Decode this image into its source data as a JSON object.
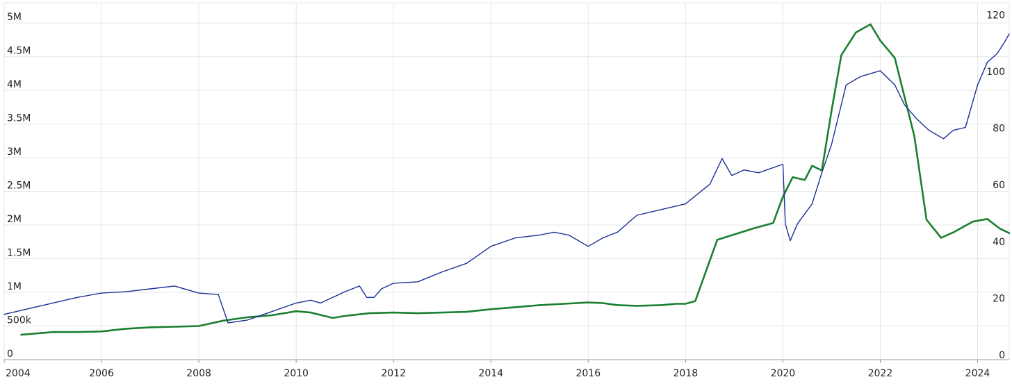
{
  "chart_data": {
    "type": "line",
    "title": "",
    "xlabel": "",
    "ylabel_left": "",
    "ylabel_right": "",
    "grid": true,
    "legend": "none",
    "x_range": [
      2004,
      2024.65
    ],
    "ylim_left": [
      0,
      5300000
    ],
    "ylim_right": [
      0,
      126
    ],
    "x_ticks": [
      {
        "value": 2004,
        "label": "2004"
      },
      {
        "value": 2006,
        "label": "2006"
      },
      {
        "value": 2008,
        "label": "2008"
      },
      {
        "value": 2010,
        "label": "2010"
      },
      {
        "value": 2012,
        "label": "2012"
      },
      {
        "value": 2014,
        "label": "2014"
      },
      {
        "value": 2016,
        "label": "2016"
      },
      {
        "value": 2018,
        "label": "2018"
      },
      {
        "value": 2020,
        "label": "2020"
      },
      {
        "value": 2022,
        "label": "2022"
      },
      {
        "value": 2024,
        "label": "2024"
      }
    ],
    "y_left_ticks": [
      {
        "value": 0,
        "label": "0"
      },
      {
        "value": 500000,
        "label": "500k"
      },
      {
        "value": 1000000,
        "label": "1M"
      },
      {
        "value": 1500000,
        "label": "1.5M"
      },
      {
        "value": 2000000,
        "label": "2M"
      },
      {
        "value": 2500000,
        "label": "2.5M"
      },
      {
        "value": 3000000,
        "label": "3M"
      },
      {
        "value": 3500000,
        "label": "3.5M"
      },
      {
        "value": 4000000,
        "label": "4M"
      },
      {
        "value": 4500000,
        "label": "4.5M"
      },
      {
        "value": 5000000,
        "label": "5M"
      }
    ],
    "y_right_ticks": [
      {
        "value": 0,
        "label": "0"
      },
      {
        "value": 20,
        "label": "20"
      },
      {
        "value": 40,
        "label": "40"
      },
      {
        "value": 60,
        "label": "60"
      },
      {
        "value": 80,
        "label": "80"
      },
      {
        "value": 100,
        "label": "100"
      },
      {
        "value": 120,
        "label": "120"
      }
    ],
    "series": [
      {
        "color": "#1a7f2e",
        "axis": "left",
        "x": [
          2004.35,
          2005.0,
          2005.5,
          2006.0,
          2006.5,
          2007.0,
          2007.5,
          2008.0,
          2008.5,
          2009.0,
          2009.5,
          2010.0,
          2010.3,
          2010.75,
          2011.0,
          2011.5,
          2012.0,
          2012.5,
          2013.0,
          2013.5,
          2014.0,
          2014.5,
          2015.0,
          2015.5,
          2016.0,
          2016.3,
          2016.6,
          2017.0,
          2017.5,
          2017.8,
          2018.0,
          2018.2,
          2018.65,
          2019.0,
          2019.4,
          2019.8,
          2020.0,
          2020.2,
          2020.45,
          2020.6,
          2020.8,
          2021.0,
          2021.2,
          2021.5,
          2021.8,
          2022.0,
          2022.3,
          2022.7,
          2022.95,
          2023.25,
          2023.5,
          2023.9,
          2024.2,
          2024.45,
          2024.65
        ],
        "values": [
          370000,
          410000,
          410000,
          420000,
          460000,
          480000,
          490000,
          500000,
          580000,
          630000,
          660000,
          720000,
          700000,
          620000,
          650000,
          690000,
          700000,
          690000,
          700000,
          710000,
          750000,
          780000,
          810000,
          830000,
          850000,
          840000,
          810000,
          800000,
          810000,
          830000,
          830000,
          870000,
          1780000,
          1860000,
          1950000,
          2030000,
          2420000,
          2710000,
          2670000,
          2880000,
          2810000,
          3700000,
          4520000,
          4860000,
          4980000,
          4740000,
          4480000,
          3320000,
          2080000,
          1810000,
          1890000,
          2050000,
          2090000,
          1950000,
          1880000
        ]
      },
      {
        "color": "#1a2e96",
        "axis": "right",
        "x": [
          2004.0,
          2004.5,
          2005.0,
          2005.5,
          2006.0,
          2006.5,
          2007.0,
          2007.5,
          2008.0,
          2008.4,
          2008.6,
          2008.8,
          2009.0,
          2009.5,
          2010.0,
          2010.3,
          2010.5,
          2011.0,
          2011.3,
          2011.45,
          2011.6,
          2011.75,
          2012.0,
          2012.5,
          2013.0,
          2013.5,
          2014.0,
          2014.5,
          2015.0,
          2015.3,
          2015.6,
          2016.0,
          2016.3,
          2016.6,
          2017.0,
          2017.5,
          2018.0,
          2018.5,
          2018.75,
          2018.95,
          2019.2,
          2019.5,
          2020.0,
          2020.05,
          2020.15,
          2020.3,
          2020.6,
          2020.8,
          2021.0,
          2021.3,
          2021.6,
          2022.0,
          2022.3,
          2022.5,
          2022.75,
          2023.0,
          2023.3,
          2023.5,
          2023.75,
          2024.0,
          2024.2,
          2024.4,
          2024.55,
          2024.65
        ],
        "values": [
          16,
          18,
          20,
          22,
          23.5,
          24,
          25,
          26,
          23.5,
          23,
          13,
          13.5,
          14,
          17,
          20,
          21,
          20,
          24,
          26,
          22,
          22,
          25,
          27,
          27.5,
          31,
          34,
          40,
          43,
          44,
          45,
          44,
          40,
          43,
          45,
          51,
          53,
          55,
          62,
          71,
          65,
          67,
          66,
          69,
          48,
          42,
          48,
          55,
          66,
          76,
          97,
          100,
          102,
          97,
          90,
          85,
          81,
          78,
          81,
          82,
          97,
          105,
          108,
          112,
          115
        ]
      }
    ]
  }
}
